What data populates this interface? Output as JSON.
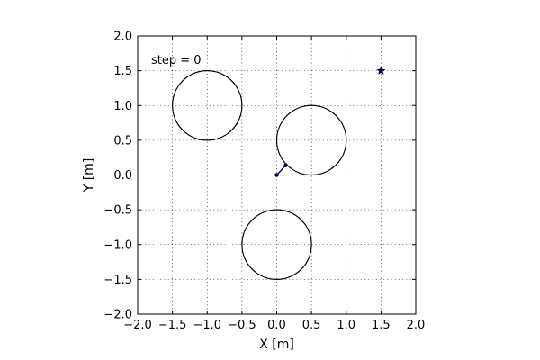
{
  "chart_data": {
    "type": "scatter",
    "xlabel": "X [m]",
    "ylabel": "Y [m]",
    "xlim": [
      -2.0,
      2.0
    ],
    "ylim": [
      -2.0,
      2.0
    ],
    "x_ticks": [
      -2.0,
      -1.5,
      -1.0,
      -0.5,
      0.0,
      0.5,
      1.0,
      1.5,
      2.0
    ],
    "y_ticks": [
      -2.0,
      -1.5,
      -1.0,
      -0.5,
      0.0,
      0.5,
      1.0,
      1.5,
      2.0
    ],
    "x_tick_labels": [
      "−2.0",
      "−1.5",
      "−1.0",
      "−0.5",
      "0.0",
      "0.5",
      "1.0",
      "1.5",
      "2.0"
    ],
    "y_tick_labels": [
      "−2.0",
      "−1.5",
      "−1.0",
      "−0.5",
      "0.0",
      "0.5",
      "1.0",
      "1.5",
      "2.0"
    ],
    "grid": true,
    "annotation": "step = 0",
    "obstacles": [
      {
        "cx": -1.0,
        "cy": 1.0,
        "r": 0.5
      },
      {
        "cx": 0.5,
        "cy": 0.5,
        "r": 0.5
      },
      {
        "cx": 0.0,
        "cy": -1.0,
        "r": 0.5
      }
    ],
    "robot_path": {
      "x": [
        0.0,
        0.13
      ],
      "y": [
        0.0,
        0.14
      ],
      "color": "#000080"
    },
    "goal": {
      "x": 1.5,
      "y": 1.5,
      "marker": "star",
      "color": "#000080"
    }
  }
}
